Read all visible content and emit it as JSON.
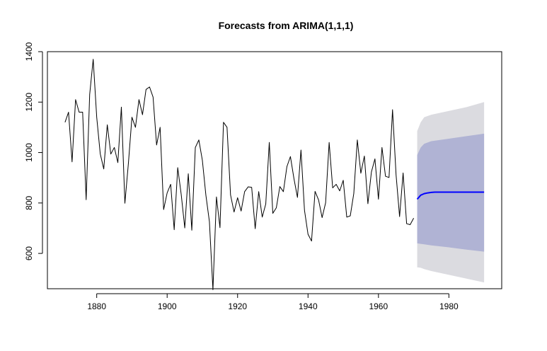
{
  "chart_data": {
    "type": "line",
    "title": "Forecasts from ARIMA(1,1,1)",
    "xlabel": "",
    "ylabel": "",
    "xlim": [
      1866,
      1995
    ],
    "ylim": [
      460,
      1400
    ],
    "x_ticks": [
      1880,
      1900,
      1920,
      1940,
      1960,
      1980
    ],
    "y_ticks": [
      600,
      800,
      1000,
      1200,
      1400
    ],
    "x_tick_labels": [
      "1880",
      "1900",
      "1920",
      "1940",
      "1960",
      "1980"
    ],
    "y_tick_labels": [
      "600",
      "800",
      "1000",
      "1200",
      "1400"
    ],
    "grid": false,
    "legend": "none",
    "series": [
      {
        "kind": "observed",
        "x_start": 1871,
        "x_step": 1,
        "values": [
          1120,
          1160,
          963,
          1210,
          1160,
          1160,
          813,
          1230,
          1370,
          1140,
          995,
          935,
          1110,
          994,
          1020,
          960,
          1180,
          799,
          958,
          1140,
          1100,
          1210,
          1150,
          1250,
          1260,
          1220,
          1030,
          1100,
          774,
          840,
          874,
          694,
          940,
          833,
          701,
          916,
          692,
          1020,
          1050,
          969,
          831,
          726,
          456,
          824,
          702,
          1120,
          1100,
          832,
          764,
          821,
          768,
          845,
          864,
          862,
          698,
          845,
          744,
          796,
          1040,
          759,
          781,
          865,
          845,
          944,
          984,
          897,
          822,
          1010,
          771,
          676,
          649,
          846,
          812,
          742,
          801,
          1040,
          860,
          874,
          848,
          890,
          744,
          749,
          838,
          1050,
          918,
          986,
          797,
          923,
          975,
          815,
          1020,
          906,
          901,
          1170,
          912,
          746,
          919,
          718,
          714,
          740
        ]
      },
      {
        "kind": "forecast",
        "color": "#0000ff",
        "x_start": 1971,
        "x_step": 1,
        "values": [
          815,
          831,
          837,
          840,
          842,
          843,
          843,
          843,
          843,
          843,
          843,
          843,
          843,
          843,
          843,
          843,
          843,
          843,
          843,
          843
        ]
      }
    ],
    "intervals": [
      {
        "level": "95",
        "color": "#dbdbe0",
        "x": [
          1971,
          1972,
          1973,
          1975,
          1980,
          1985,
          1990
        ],
        "lower": [
          545,
          543,
          538,
          530,
          515,
          500,
          485
        ],
        "upper": [
          1085,
          1120,
          1140,
          1150,
          1165,
          1180,
          1200
        ]
      },
      {
        "level": "80",
        "color": "#b0b3d4",
        "x": [
          1971,
          1972,
          1973,
          1975,
          1980,
          1985,
          1990
        ],
        "lower": [
          640,
          638,
          636,
          632,
          624,
          615,
          607
        ],
        "upper": [
          990,
          1020,
          1035,
          1045,
          1055,
          1065,
          1075
        ]
      }
    ]
  }
}
